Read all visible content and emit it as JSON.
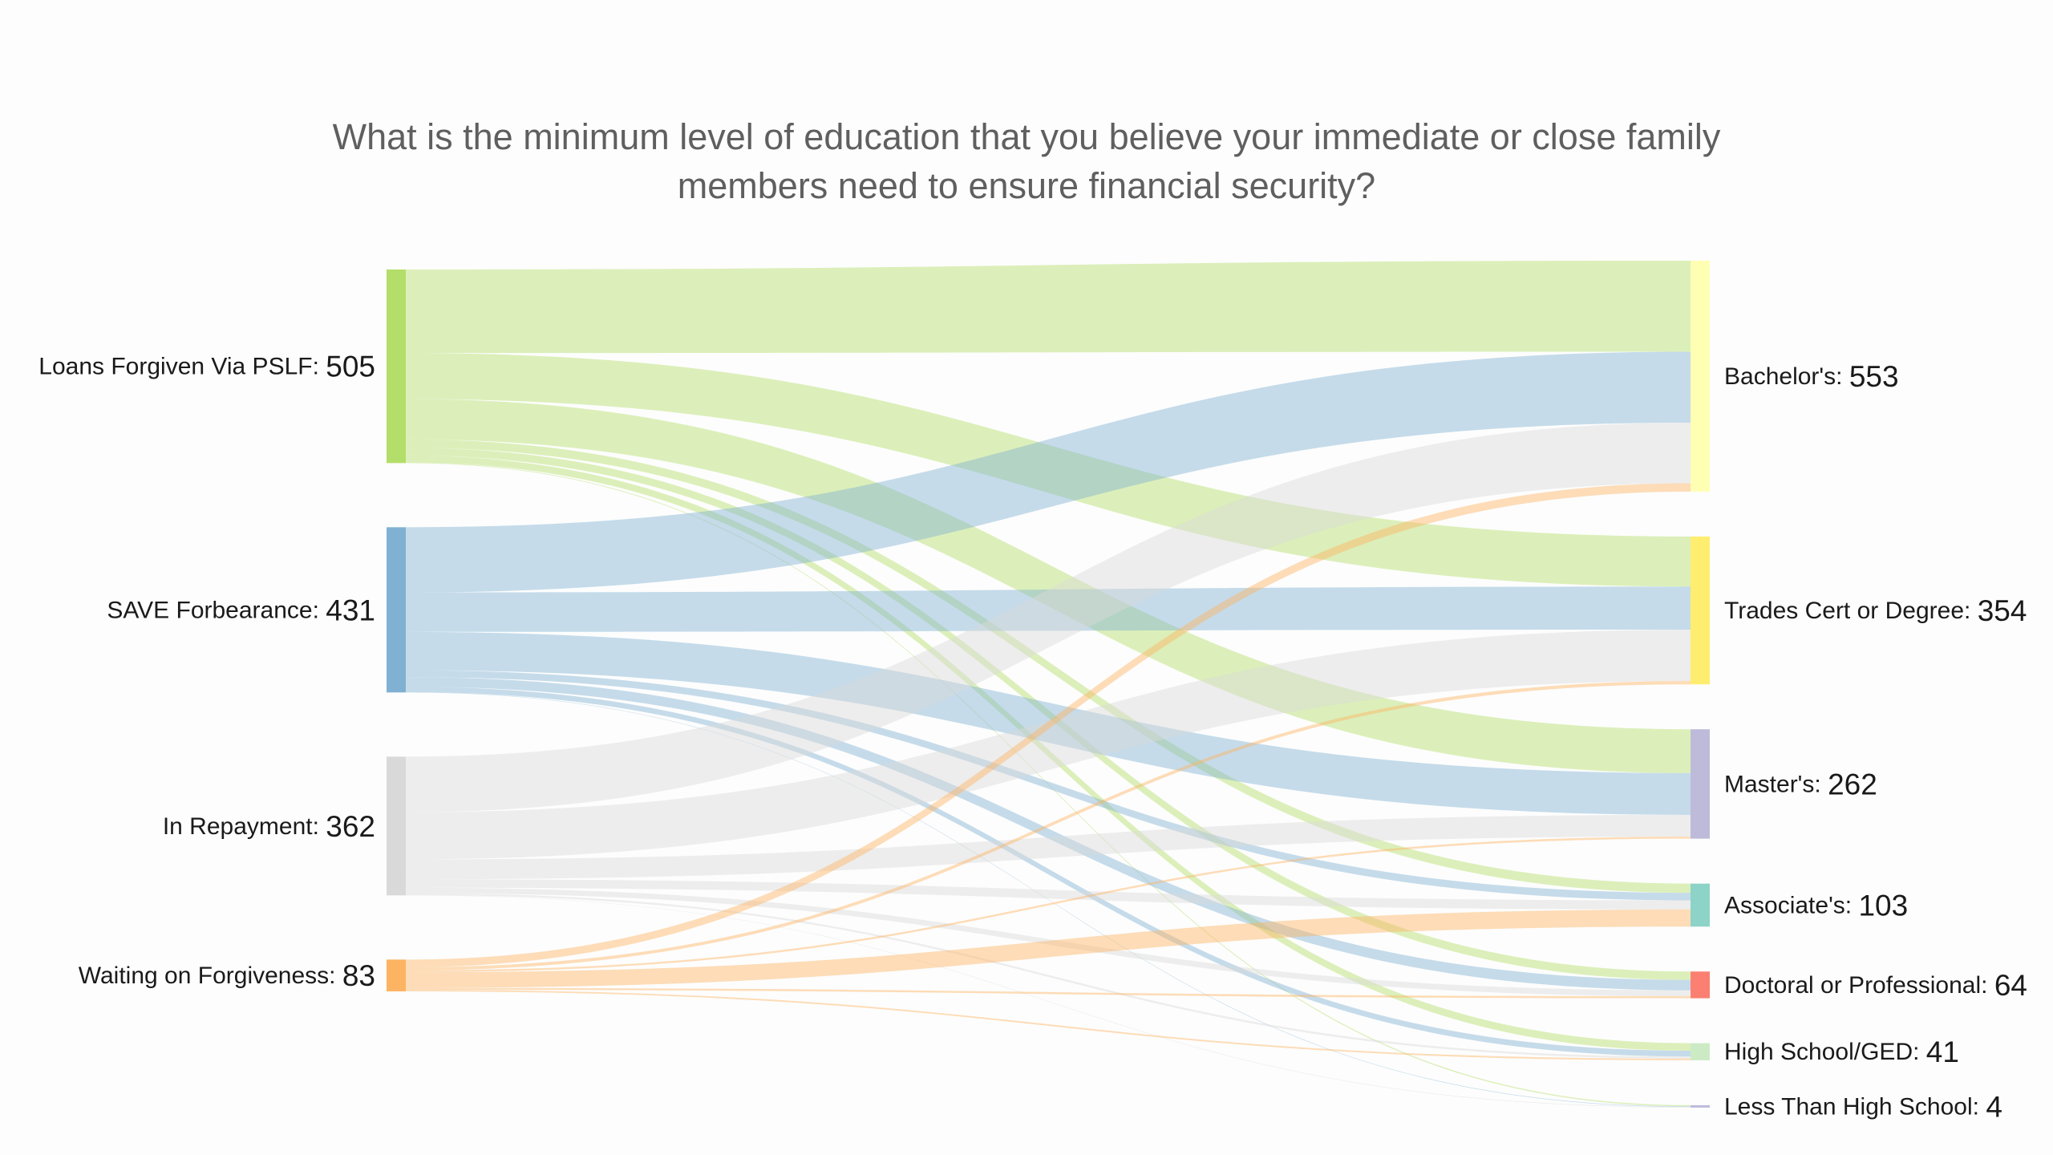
{
  "chart_data": {
    "type": "sankey",
    "title": "What is the minimum level of education that you believe your immediate or close family members need to ensure financial security?",
    "sources": [
      {
        "name": "Loans Forgiven Via PSLF",
        "value": 505,
        "color": "#b3de69"
      },
      {
        "name": "SAVE Forbearance",
        "value": 431,
        "color": "#80b1d3"
      },
      {
        "name": "In Repayment",
        "value": 362,
        "color": "#d9d9d9"
      },
      {
        "name": "Waiting on Forgiveness",
        "value": 83,
        "color": "#fdb462"
      }
    ],
    "targets": [
      {
        "name": "Bachelor's",
        "value": 553,
        "color": "#ffffb3"
      },
      {
        "name": "Trades Cert or Degree",
        "value": 354,
        "color": "#ffed6f"
      },
      {
        "name": "Master's",
        "value": 262,
        "color": "#bebada"
      },
      {
        "name": "Associate's",
        "value": 103,
        "color": "#8dd3c7"
      },
      {
        "name": "Doctoral or Professional",
        "value": 64,
        "color": "#fb8072"
      },
      {
        "name": "High School/GED",
        "value": 41,
        "color": "#ccebc5"
      },
      {
        "name": "Less Than High School",
        "value": 4,
        "color": "#bebada"
      }
    ],
    "flows": [
      {
        "source": "Loans Forgiven Via PSLF",
        "target": "Bachelor's",
        "value": 218
      },
      {
        "source": "Loans Forgiven Via PSLF",
        "target": "Trades Cert or Degree",
        "value": 120
      },
      {
        "source": "Loans Forgiven Via PSLF",
        "target": "Master's",
        "value": 105
      },
      {
        "source": "Loans Forgiven Via PSLF",
        "target": "Associate's",
        "value": 22
      },
      {
        "source": "Loans Forgiven Via PSLF",
        "target": "Doctoral or Professional",
        "value": 20
      },
      {
        "source": "Loans Forgiven Via PSLF",
        "target": "High School/GED",
        "value": 18
      },
      {
        "source": "Loans Forgiven Via PSLF",
        "target": "Less Than High School",
        "value": 2
      },
      {
        "source": "SAVE Forbearance",
        "target": "Bachelor's",
        "value": 170
      },
      {
        "source": "SAVE Forbearance",
        "target": "Trades Cert or Degree",
        "value": 103
      },
      {
        "source": "SAVE Forbearance",
        "target": "Master's",
        "value": 100
      },
      {
        "source": "SAVE Forbearance",
        "target": "Associate's",
        "value": 18
      },
      {
        "source": "SAVE Forbearance",
        "target": "Doctoral or Professional",
        "value": 25
      },
      {
        "source": "SAVE Forbearance",
        "target": "High School/GED",
        "value": 14
      },
      {
        "source": "SAVE Forbearance",
        "target": "Less Than High School",
        "value": 1
      },
      {
        "source": "In Repayment",
        "target": "Bachelor's",
        "value": 145
      },
      {
        "source": "In Repayment",
        "target": "Trades Cert or Degree",
        "value": 123
      },
      {
        "source": "In Repayment",
        "target": "Master's",
        "value": 52
      },
      {
        "source": "In Repayment",
        "target": "Associate's",
        "value": 22
      },
      {
        "source": "In Repayment",
        "target": "Doctoral or Professional",
        "value": 14
      },
      {
        "source": "In Repayment",
        "target": "High School/GED",
        "value": 5
      },
      {
        "source": "In Repayment",
        "target": "Less Than High School",
        "value": 1
      },
      {
        "source": "Waiting on Forgiveness",
        "target": "Bachelor's",
        "value": 20
      },
      {
        "source": "Waiting on Forgiveness",
        "target": "Trades Cert or Degree",
        "value": 8
      },
      {
        "source": "Waiting on Forgiveness",
        "target": "Master's",
        "value": 5
      },
      {
        "source": "Waiting on Forgiveness",
        "target": "Associate's",
        "value": 41
      },
      {
        "source": "Waiting on Forgiveness",
        "target": "Doctoral or Professional",
        "value": 5
      },
      {
        "source": "Waiting on Forgiveness",
        "target": "High School/GED",
        "value": 4
      }
    ]
  }
}
